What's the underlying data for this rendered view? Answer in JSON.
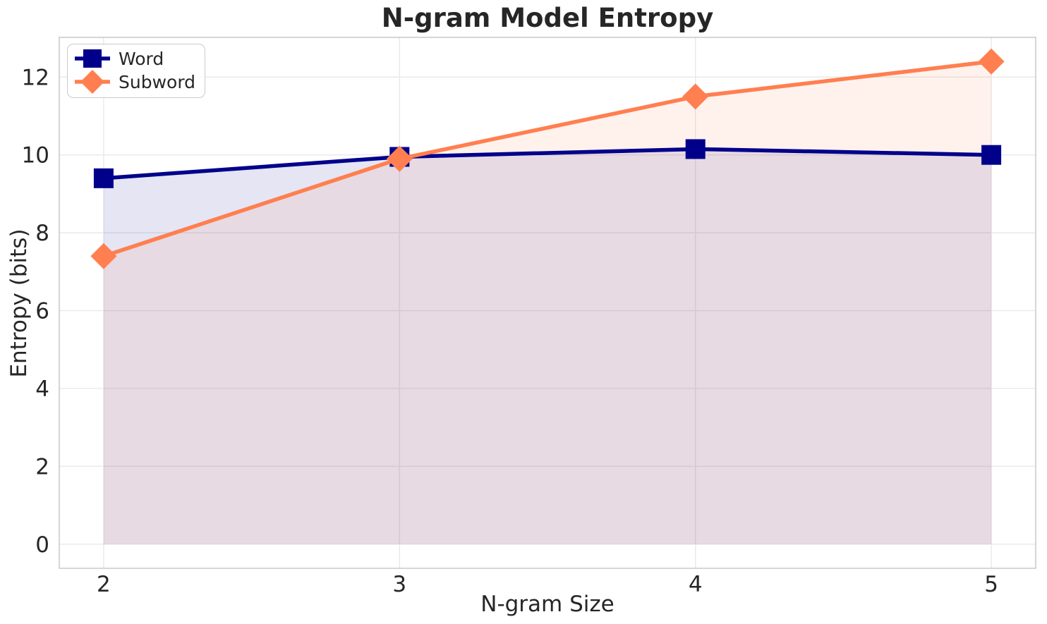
{
  "chart_data": {
    "type": "line",
    "title": "N-gram Model Entropy",
    "xlabel": "N-gram Size",
    "ylabel": "Entropy (bits)",
    "x": [
      2,
      3,
      4,
      5
    ],
    "series": [
      {
        "name": "Word",
        "color": "#00008B",
        "marker": "square",
        "values": [
          9.4,
          9.95,
          10.15,
          10.0
        ]
      },
      {
        "name": "Subword",
        "color": "#FF7F50",
        "marker": "diamond",
        "values": [
          7.4,
          9.9,
          11.5,
          12.4
        ]
      }
    ],
    "xticks": [
      2,
      3,
      4,
      5
    ],
    "yticks": [
      0,
      2,
      4,
      6,
      8,
      10,
      12
    ],
    "xlim": [
      1.85,
      5.15
    ],
    "ylim": [
      -0.62,
      13.02
    ],
    "grid": true,
    "fill_alpha": 0.1,
    "fill_baseline": 0,
    "legend_position": "upper-left",
    "line_width": 5.5,
    "colors": {
      "text": "#262626",
      "grid": "#E9E9E9",
      "spine": "#CBCBCB",
      "background": "#FFFFFF"
    }
  }
}
